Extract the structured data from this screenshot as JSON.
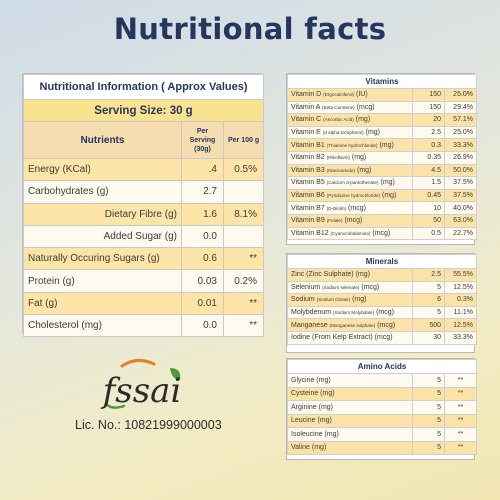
{
  "title": "Nutritional facts",
  "nutrition": {
    "heading": "Nutritional Information ( Approx Values)",
    "serving_size": "Serving Size: 30 g",
    "columns": {
      "name": "Nutrients",
      "per_serving": "Per Serving (30g)",
      "per_100g": "Per 100 g"
    },
    "rows": [
      {
        "name": "Energy (KCal)",
        "per_serving": ".4",
        "per_100g": "0.5%"
      },
      {
        "name": "Carbohydrates (g)",
        "per_serving": "2.7",
        "per_100g": ""
      },
      {
        "name": "Dietary Fibre (g)",
        "per_serving": "1.6",
        "per_100g": "8.1%"
      },
      {
        "name": "Added Sugar (g)",
        "per_serving": "0.0",
        "per_100g": ""
      },
      {
        "name": "Naturally Occuring Sugars (g)",
        "per_serving": "0.6",
        "per_100g": "**"
      },
      {
        "name": "Protein (g)",
        "per_serving": "0.03",
        "per_100g": "0.2%"
      },
      {
        "name": "Fat (g)",
        "per_serving": "0.01",
        "per_100g": "**"
      },
      {
        "name": "Cholesterol (mg)",
        "per_serving": "0.0",
        "per_100g": "**"
      }
    ]
  },
  "vitamins": {
    "heading": "Vitamins",
    "rows": [
      {
        "name": "Vitamin D",
        "sub": "(Ergocalciferol)",
        "unit": "(IU)",
        "value": "150",
        "pct": "25.0%"
      },
      {
        "name": "Vitamin A",
        "sub": "(Beta Carotene)",
        "unit": "(mcg)",
        "value": "150",
        "pct": "29.4%"
      },
      {
        "name": "Vitamin C",
        "sub": "(Ascorbic Acid)",
        "unit": "(mg)",
        "value": "20",
        "pct": "57.1%"
      },
      {
        "name": "Vitamin E",
        "sub": "(d alpha tocopherol)",
        "unit": "(mg)",
        "value": "2.5",
        "pct": "25.0%"
      },
      {
        "name": "Vitamin B1",
        "sub": "(Thiamine hydrochloride)",
        "unit": "(mg)",
        "value": "0.3",
        "pct": "33.3%"
      },
      {
        "name": "Vitamin B2",
        "sub": "(Riboflavin)",
        "unit": "(mg)",
        "value": "0.35",
        "pct": "26.9%"
      },
      {
        "name": "Vitamin B3",
        "sub": "(Niacinamide)",
        "unit": "(mg)",
        "value": "4.5",
        "pct": "50.0%"
      },
      {
        "name": "Vitamin B5",
        "sub": "(Calcium d-pantothenate)",
        "unit": "(mg)",
        "value": "1.5",
        "pct": "37.5%"
      },
      {
        "name": "Vitamin B6",
        "sub": "(Pyridoxine hydrochloride)",
        "unit": "(mg)",
        "value": "0.45",
        "pct": "37.5%"
      },
      {
        "name": "Vitamin B7",
        "sub": "(D-Biotin)",
        "unit": "(mcg)",
        "value": "10",
        "pct": "40.0%"
      },
      {
        "name": "Vitamin B9",
        "sub": "(Folate)",
        "unit": "(mcg)",
        "value": "50",
        "pct": "63.0%"
      },
      {
        "name": "Vitamin B12",
        "sub": "(Cyanocobalamine)",
        "unit": "(mcg)",
        "value": "0.5",
        "pct": "22.7%"
      }
    ]
  },
  "minerals": {
    "heading": "Minerals",
    "rows": [
      {
        "name": "Zinc (Zinc Sulphate)",
        "sub": "",
        "unit": "(mg)",
        "value": "2.5",
        "pct": "55.5%"
      },
      {
        "name": "Selenium",
        "sub": "(Sodium selenate)",
        "unit": "(mcg)",
        "value": "5",
        "pct": "12.5%"
      },
      {
        "name": "Sodium",
        "sub": "(Sodium Citrate)",
        "unit": "(mg)",
        "value": "6",
        "pct": "0.3%"
      },
      {
        "name": "Molybdenum",
        "sub": "(Sodium Molybdate)",
        "unit": "(mcg)",
        "value": "5",
        "pct": "11.1%"
      },
      {
        "name": "Manganese",
        "sub": "(Manganese sulphate)",
        "unit": "(mcg)",
        "value": "500",
        "pct": "12.5%"
      },
      {
        "name": "Iodine (From Kelp Extract)",
        "sub": "",
        "unit": "(mcg)",
        "value": "30",
        "pct": "33.3%"
      }
    ]
  },
  "amino_acids": {
    "heading": "Amino Acids",
    "rows": [
      {
        "name": "Glycine (mg)",
        "value": "5",
        "pct": "**"
      },
      {
        "name": "Cysteine (mg)",
        "value": "5",
        "pct": "**"
      },
      {
        "name": "Arginine (mg)",
        "value": "5",
        "pct": "**"
      },
      {
        "name": "Leucine (mg)",
        "value": "5",
        "pct": "**"
      },
      {
        "name": "Isoleucine (mg)",
        "value": "5",
        "pct": "**"
      },
      {
        "name": "Valine (mg)",
        "value": "5",
        "pct": "**"
      }
    ]
  },
  "fssai": {
    "logo_text": "fssai",
    "license": "Lic. No.: 10821999000003",
    "colors": {
      "main": "#2b2b2b",
      "accent": "#e3812a",
      "leaf": "#4a9a3c"
    }
  },
  "colors": {
    "title": "#26365f",
    "row_yellow": "#fce5a6",
    "row_white": "#fffaf0",
    "header_yellow": "#f9e38e"
  }
}
